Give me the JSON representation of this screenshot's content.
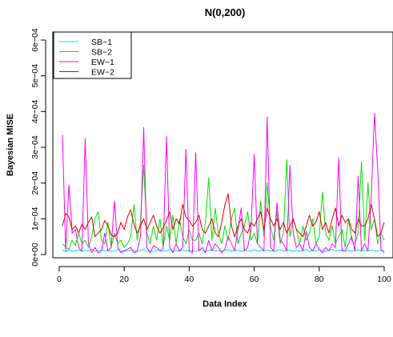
{
  "chart_data": {
    "type": "line",
    "title": "N(0,200)",
    "xlabel": "Data Index",
    "ylabel": "Bayesian MISE",
    "xlim": [
      1,
      100
    ],
    "ylim": [
      0,
      0.0006
    ],
    "x_ticks": [
      0,
      20,
      40,
      60,
      80,
      100
    ],
    "x_tick_labels": [
      "0",
      "20",
      "40",
      "60",
      "80",
      "100"
    ],
    "y_ticks": [
      0,
      0.0001,
      0.0002,
      0.0003,
      0.0004,
      0.0005,
      0.0006
    ],
    "y_tick_labels": [
      "0e+00",
      "1e−04",
      "2e−04",
      "3e−04",
      "4e−04",
      "5e−04",
      "6e−04"
    ],
    "legend_position": "top-left",
    "grid": false,
    "x": [
      1,
      2,
      3,
      4,
      5,
      6,
      7,
      8,
      9,
      10,
      11,
      12,
      13,
      14,
      15,
      16,
      17,
      18,
      19,
      20,
      21,
      22,
      23,
      24,
      25,
      26,
      27,
      28,
      29,
      30,
      31,
      32,
      33,
      34,
      35,
      36,
      37,
      38,
      39,
      40,
      41,
      42,
      43,
      44,
      45,
      46,
      47,
      48,
      49,
      50,
      51,
      52,
      53,
      54,
      55,
      56,
      57,
      58,
      59,
      60,
      61,
      62,
      63,
      64,
      65,
      66,
      67,
      68,
      69,
      70,
      71,
      72,
      73,
      74,
      75,
      76,
      77,
      78,
      79,
      80,
      81,
      82,
      83,
      84,
      85,
      86,
      87,
      88,
      89,
      90,
      91,
      92,
      93,
      94,
      95,
      96,
      97,
      98,
      99,
      100
    ],
    "series": [
      {
        "name": "SB−1",
        "color": "#00e5e5",
        "values": [
          1.2e-05,
          8e-06,
          1.4e-05,
          9e-06,
          1.1e-05,
          1.3e-05,
          8e-06,
          1.2e-05,
          1e-05,
          1.4e-05,
          9e-06,
          1.1e-05,
          1.3e-05,
          1e-05,
          1.2e-05,
          8e-06,
          1.1e-05,
          1.4e-05,
          9e-06,
          1.2e-05,
          1e-05,
          1.3e-05,
          1.1e-05,
          9e-06,
          1.2e-05,
          1.4e-05,
          1e-05,
          1.1e-05,
          8e-06,
          1.3e-05,
          1.2e-05,
          9e-06,
          1.1e-05,
          1.4e-05,
          1e-05,
          1.2e-05,
          9e-06,
          1.3e-05,
          1.1e-05,
          1e-05,
          1.2e-05,
          8e-06,
          1.4e-05,
          1.1e-05,
          9e-06,
          1.2e-05,
          1.3e-05,
          1e-05,
          1.1e-05,
          9e-06,
          1.2e-05,
          1.4e-05,
          1e-05,
          1.1e-05,
          1.3e-05,
          9e-06,
          1.2e-05,
          1e-05,
          1.1e-05,
          1.4e-05,
          9e-06,
          1.2e-05,
          1e-05,
          1.3e-05,
          1.1e-05,
          9e-06,
          1.2e-05,
          1.4e-05,
          1e-05,
          1.1e-05,
          1.3e-05,
          9e-06,
          1.2e-05,
          1e-05,
          1.1e-05,
          1.4e-05,
          9e-06,
          1.2e-05,
          1e-05,
          1.3e-05,
          1.1e-05,
          9e-06,
          1.2e-05,
          1.4e-05,
          1e-05,
          1.1e-05,
          1.3e-05,
          9e-06,
          1.2e-05,
          1e-05,
          1.1e-05,
          1.4e-05,
          9e-06,
          1.2e-05,
          1e-05,
          1.3e-05,
          1.1e-05,
          9e-06,
          1.2e-05,
          1e-05
        ]
      },
      {
        "name": "SB−2",
        "color": "#00e600",
        "values": [
          3e-05,
          2e-05,
          1.5e-05,
          4e-05,
          2.5e-05,
          6e-05,
          3e-05,
          4e-05,
          2e-05,
          5e-05,
          0.0001,
          0.00012,
          4e-05,
          3e-05,
          9e-05,
          2e-05,
          6e-05,
          3e-05,
          4e-05,
          2e-05,
          3e-05,
          5e-05,
          0.00014,
          4e-05,
          9e-05,
          0.00025,
          6e-05,
          3e-05,
          8e-05,
          4e-05,
          0.0001,
          2e-05,
          8e-05,
          4e-05,
          0.00011,
          3e-05,
          0.0001,
          5e-05,
          3e-05,
          7e-05,
          4e-05,
          4e-05,
          6e-05,
          3e-05,
          9e-05,
          0.000215,
          4e-05,
          0.00013,
          6e-05,
          3e-05,
          8e-05,
          4e-05,
          0.0001,
          0.00013,
          3e-05,
          6e-05,
          8e-05,
          0.00012,
          4e-05,
          6e-05,
          3e-05,
          0.00015,
          5e-05,
          0.0002,
          8e-05,
          4e-05,
          0.00012,
          3e-05,
          6e-05,
          0.000265,
          5e-05,
          0.0001,
          7e-05,
          3e-05,
          8e-05,
          4e-05,
          6e-05,
          0.0001,
          3e-05,
          5e-05,
          0.000175,
          6e-05,
          4e-05,
          8e-05,
          3e-05,
          5e-05,
          7e-05,
          2e-05,
          0.0001,
          4e-05,
          3e-05,
          6e-05,
          0.00026,
          4e-05,
          0.0002,
          7e-05,
          0.0001,
          3e-05,
          6e-05,
          4e-05
        ]
      },
      {
        "name": "EW−1",
        "color": "#ff00ff",
        "values": [
          0.000335,
          1e-05,
          0.000195,
          6e-05,
          7e-05,
          2e-05,
          1e-05,
          0.000325,
          3e-05,
          5e-06,
          2e-05,
          5e-06,
          1e-05,
          6e-05,
          1e-05,
          2e-05,
          0.00015,
          2e-05,
          5e-06,
          1e-05,
          1.5e-05,
          2e-05,
          5e-06,
          1e-05,
          5e-05,
          0.000355,
          2e-05,
          5e-06,
          2.5e-05,
          2e-05,
          1e-05,
          1.5e-05,
          0.00033,
          2e-05,
          5e-06,
          3e-05,
          1e-05,
          2e-05,
          0.000295,
          1e-05,
          5e-06,
          0.000285,
          1e-05,
          2e-05,
          5e-06,
          4e-05,
          1e-05,
          3e-05,
          2e-05,
          5e-06,
          1.5e-05,
          5e-05,
          3e-05,
          1e-05,
          7e-05,
          0.00013,
          1e-05,
          2e-05,
          7e-05,
          0.00028,
          3e-05,
          2e-05,
          1e-05,
          0.000385,
          2e-05,
          1e-05,
          0.000145,
          4e-05,
          3e-05,
          1e-05,
          0.00025,
          6e-05,
          2e-05,
          3e-05,
          1e-05,
          6.5e-05,
          2e-05,
          1e-05,
          3e-05,
          1.5e-05,
          5e-06,
          2e-05,
          1e-05,
          3e-05,
          2e-05,
          0.00027,
          1e-05,
          1e-05,
          3e-05,
          5e-05,
          1e-05,
          0.00022,
          1e-05,
          3e-05,
          1e-05,
          0.00016,
          0.000395,
          0.00024,
          1.5e-05,
          5e-06
        ]
      },
      {
        "name": "EW−2",
        "color": "#e00000",
        "values": [
          8e-05,
          0.000115,
          0.000105,
          7e-05,
          8e-05,
          6e-05,
          8.5e-05,
          7e-05,
          9e-05,
          0.000105,
          5e-05,
          6e-05,
          7e-05,
          9.5e-05,
          8e-05,
          5.5e-05,
          5e-05,
          6e-05,
          9e-05,
          7e-05,
          0.000105,
          0.000125,
          8.5e-05,
          6e-05,
          8e-05,
          0.0001,
          7e-05,
          9e-05,
          0.00011,
          8e-05,
          6e-05,
          7.5e-05,
          9.5e-05,
          0.00012,
          7e-05,
          0.0001,
          8.5e-05,
          0.00014,
          0.000105,
          9.5e-05,
          8e-05,
          9e-05,
          0.00011,
          7e-05,
          6e-05,
          8e-05,
          0.0001,
          6e-05,
          5e-05,
          9e-05,
          0.00014,
          0.00017,
          8e-05,
          5e-05,
          8e-05,
          0.0001,
          7e-05,
          6e-05,
          9e-05,
          8e-05,
          0.0001,
          0.00012,
          7e-05,
          0.00013,
          0.0001,
          8e-05,
          0.0001,
          7e-05,
          9e-05,
          6e-05,
          8e-05,
          0.0001,
          7e-05,
          6e-05,
          5e-05,
          8e-05,
          0.00011,
          8e-05,
          9e-05,
          0.00012,
          7e-05,
          9e-05,
          6e-05,
          0.0001,
          0.00013,
          8e-05,
          0.00011,
          9e-05,
          0.0001,
          7e-05,
          6e-05,
          0.0001,
          8e-05,
          8e-05,
          0.0001,
          0.00014,
          0.0001,
          5e-05,
          6e-05,
          9e-05
        ]
      }
    ]
  }
}
